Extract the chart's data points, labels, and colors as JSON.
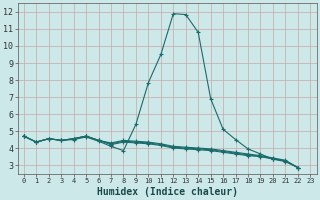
{
  "xlabel": "Humidex (Indice chaleur)",
  "bg_color": "#cce8e8",
  "line_color": "#1a6b6b",
  "grid_color": "#b0d0d0",
  "xlim": [
    -0.5,
    23.5
  ],
  "ylim": [
    2.5,
    12.5
  ],
  "xticks": [
    0,
    1,
    2,
    3,
    4,
    5,
    6,
    7,
    8,
    9,
    10,
    11,
    12,
    13,
    14,
    15,
    16,
    17,
    18,
    19,
    20,
    21,
    22,
    23
  ],
  "yticks": [
    3,
    4,
    5,
    6,
    7,
    8,
    9,
    10,
    11,
    12
  ],
  "line1": [
    4.7,
    4.35,
    4.55,
    4.45,
    4.5,
    4.65,
    4.4,
    4.1,
    3.85,
    5.4,
    7.85,
    9.5,
    11.9,
    11.85,
    10.8,
    6.9,
    5.1,
    4.5,
    3.95,
    3.65,
    3.35,
    3.25,
    2.85
  ],
  "line2": [
    4.7,
    4.35,
    4.55,
    4.45,
    4.55,
    4.7,
    4.45,
    4.2,
    4.35,
    4.3,
    4.25,
    4.15,
    4.0,
    3.95,
    3.9,
    3.85,
    3.75,
    3.65,
    3.55,
    3.5,
    3.35,
    3.2,
    2.85
  ],
  "line3": [
    4.7,
    4.35,
    4.55,
    4.45,
    4.55,
    4.7,
    4.45,
    4.25,
    4.4,
    4.35,
    4.3,
    4.2,
    4.05,
    4.0,
    3.95,
    3.9,
    3.8,
    3.7,
    3.6,
    3.52,
    3.38,
    3.25,
    2.85
  ],
  "line4": [
    4.7,
    4.35,
    4.55,
    4.45,
    4.55,
    4.7,
    4.45,
    4.3,
    4.45,
    4.4,
    4.35,
    4.25,
    4.1,
    4.05,
    4.0,
    3.95,
    3.85,
    3.75,
    3.65,
    3.55,
    3.42,
    3.28,
    2.85
  ],
  "marker_size": 2.2,
  "linewidth": 0.8
}
